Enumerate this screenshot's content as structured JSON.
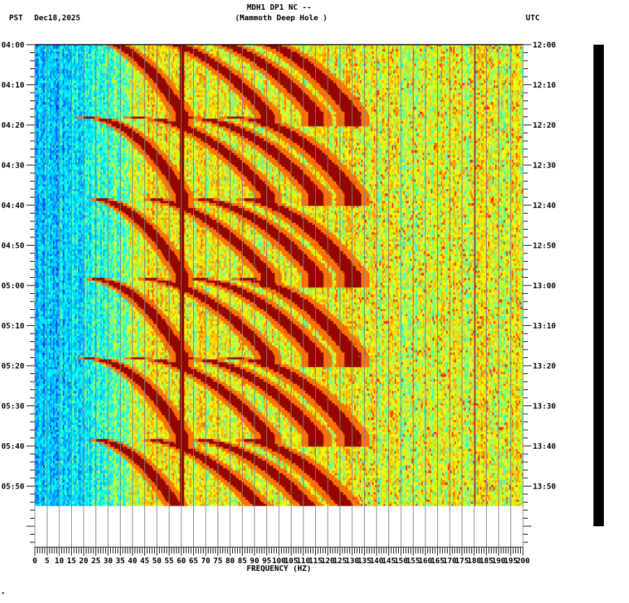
{
  "header": {
    "station": "MDH1 DP1 NC --",
    "location": "(Mammoth Deep Hole )",
    "left_tz": "PST",
    "date": "Dec18,2025",
    "right_tz": "UTC"
  },
  "footer_mark": "ᴹ",
  "chart_data": {
    "type": "heatmap",
    "title": "MDH1 DP1 NC -- (Mammoth Deep Hole )",
    "xlabel": "FREQUENCY (HZ)",
    "ylabel_left": "PST",
    "ylabel_right": "UTC",
    "xlim": [
      0,
      200
    ],
    "x_ticks": [
      0,
      5,
      10,
      15,
      20,
      25,
      30,
      35,
      40,
      45,
      50,
      55,
      60,
      65,
      70,
      75,
      80,
      85,
      90,
      95,
      100,
      105,
      110,
      115,
      120,
      125,
      130,
      135,
      140,
      145,
      150,
      155,
      160,
      165,
      170,
      175,
      180,
      185,
      190,
      195,
      200
    ],
    "y_ticks_left": [
      "04:00",
      "04:10",
      "04:20",
      "04:30",
      "04:40",
      "04:50",
      "05:00",
      "05:10",
      "05:20",
      "05:30",
      "05:40",
      "05:50"
    ],
    "y_ticks_right": [
      "12:00",
      "12:10",
      "12:20",
      "12:30",
      "12:40",
      "12:50",
      "13:00",
      "13:10",
      "13:20",
      "13:30",
      "13:40",
      "13:50"
    ],
    "time_range_minutes": [
      0,
      120
    ],
    "data_end_minute": 115,
    "colormap": [
      "#0000c0",
      "#0060ff",
      "#00c0ff",
      "#00ffff",
      "#80ff80",
      "#ffff00",
      "#ffa000",
      "#ff3000",
      "#800000"
    ],
    "features": {
      "persistent_line_hz": 60,
      "weak_line_hz": 180,
      "arc_sweep_period_minutes": 20,
      "arc_start_minutes": [
        -2,
        18,
        38,
        58,
        78,
        98
      ],
      "notes": "Repeating curved harmonic sweeps (low energy blue below ~20 Hz, red/yellow above)"
    },
    "grid": true
  }
}
